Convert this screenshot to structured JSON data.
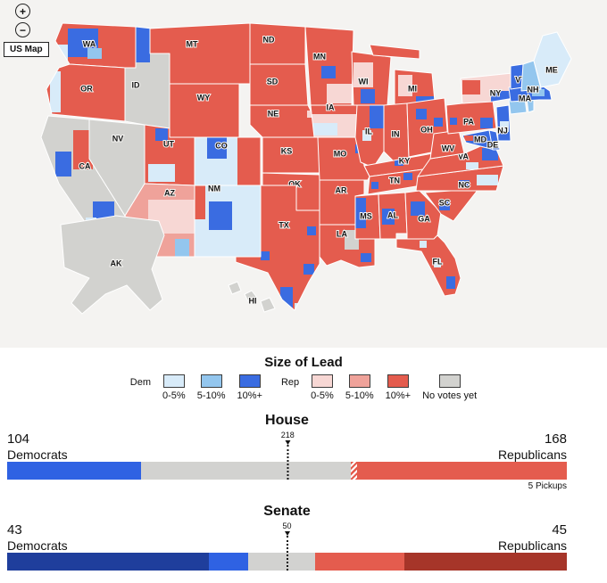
{
  "map_section": {
    "background": "#f4f3f1",
    "controls": {
      "zoom_in_label": "+",
      "zoom_out_label": "−",
      "view_button_label": "US Map"
    },
    "palette": {
      "dem1": "#d8ebf9",
      "dem2": "#93c6ee",
      "dem3": "#3a6ce1",
      "rep1": "#f7d7d4",
      "rep2": "#efa29a",
      "rep3": "#e45c4e",
      "neutral": "#d2d2cf"
    },
    "states": [
      {
        "code": "WA",
        "fill": "rep3"
      },
      {
        "code": "OR",
        "fill": "rep3"
      },
      {
        "code": "CA",
        "fill": "neutral"
      },
      {
        "code": "NV",
        "fill": "neutral"
      },
      {
        "code": "ID",
        "fill": "neutral"
      },
      {
        "code": "MT",
        "fill": "rep3"
      },
      {
        "code": "WY",
        "fill": "rep3"
      },
      {
        "code": "UT",
        "fill": "rep3"
      },
      {
        "code": "CO",
        "fill": "dem1"
      },
      {
        "code": "AZ",
        "fill": "rep2"
      },
      {
        "code": "NM",
        "fill": "dem1"
      },
      {
        "code": "ND",
        "fill": "rep3"
      },
      {
        "code": "SD",
        "fill": "rep3"
      },
      {
        "code": "NE",
        "fill": "rep3"
      },
      {
        "code": "KS",
        "fill": "rep3"
      },
      {
        "code": "OK",
        "fill": "rep3"
      },
      {
        "code": "TX",
        "fill": "rep3"
      },
      {
        "code": "MN",
        "fill": "rep3"
      },
      {
        "code": "IA",
        "fill": "rep1"
      },
      {
        "code": "MO",
        "fill": "rep3"
      },
      {
        "code": "AR",
        "fill": "rep3"
      },
      {
        "code": "LA",
        "fill": "rep3"
      },
      {
        "code": "WI",
        "fill": "rep3"
      },
      {
        "code": "MI",
        "fill": "rep3"
      },
      {
        "code": "IL",
        "fill": "rep3"
      },
      {
        "code": "IN",
        "fill": "rep3"
      },
      {
        "code": "OH",
        "fill": "rep3"
      },
      {
        "code": "KY",
        "fill": "rep3"
      },
      {
        "code": "TN",
        "fill": "rep3"
      },
      {
        "code": "MS",
        "fill": "rep3"
      },
      {
        "code": "AL",
        "fill": "rep3"
      },
      {
        "code": "GA",
        "fill": "rep3"
      },
      {
        "code": "FL",
        "fill": "rep3"
      },
      {
        "code": "SC",
        "fill": "rep3"
      },
      {
        "code": "NC",
        "fill": "rep3"
      },
      {
        "code": "VA",
        "fill": "rep3"
      },
      {
        "code": "WV",
        "fill": "rep3"
      },
      {
        "code": "PA",
        "fill": "rep3"
      },
      {
        "code": "NY",
        "fill": "rep1"
      },
      {
        "code": "NJ",
        "fill": "dem3"
      },
      {
        "code": "MD",
        "fill": "dem3"
      },
      {
        "code": "DE",
        "fill": "dem3"
      },
      {
        "code": "CT",
        "fill": "dem2",
        "show_label": false
      },
      {
        "code": "RI",
        "fill": "dem2",
        "show_label": false
      },
      {
        "code": "MA",
        "fill": "dem3"
      },
      {
        "code": "VT",
        "fill": "dem3"
      },
      {
        "code": "NH",
        "fill": "dem2"
      },
      {
        "code": "ME",
        "fill": "dem1"
      },
      {
        "code": "AK",
        "fill": "neutral"
      },
      {
        "code": "HI",
        "fill": "neutral"
      }
    ]
  },
  "legend": {
    "title": "Size of Lead",
    "dem_label": "Dem",
    "rep_label": "Rep",
    "dem_swatches": [
      {
        "label": "0-5%",
        "color": "#d8ebf9"
      },
      {
        "label": "5-10%",
        "color": "#93c6ee"
      },
      {
        "label": "10%+",
        "color": "#3a6ce1"
      }
    ],
    "rep_swatches": [
      {
        "label": "0-5%",
        "color": "#f7d7d4"
      },
      {
        "label": "5-10%",
        "color": "#efa29a"
      },
      {
        "label": "10%+",
        "color": "#e45c4e"
      }
    ],
    "no_votes_swatch": {
      "label": "No votes yet",
      "color": "#d2d2cf"
    }
  },
  "house": {
    "title": "House",
    "left": {
      "value": "104",
      "label": "Democrats"
    },
    "right": {
      "value": "168",
      "label": "Republicans"
    },
    "total_seats": 435,
    "majority_seats": 218,
    "pickups_note": "5 Pickups",
    "segments": [
      {
        "name": "dem-leads",
        "seats": 104,
        "color": "#2f62e3"
      },
      {
        "name": "uncalled",
        "seats": 163,
        "color": "#d2d2d0"
      },
      {
        "name": "rep-pickups",
        "seats": 5,
        "color": "#e45c4e",
        "hatched": true
      },
      {
        "name": "rep-leads",
        "seats": 163,
        "color": "#e45c4e"
      }
    ]
  },
  "senate": {
    "title": "Senate",
    "left": {
      "value": "43",
      "label": "Democrats"
    },
    "right": {
      "value": "45",
      "label": "Republicans"
    },
    "total_seats": 100,
    "majority_seats": 50,
    "pickups_note": "",
    "segments": [
      {
        "name": "dem-holdovers",
        "seats": 36,
        "color": "#1f3e9c"
      },
      {
        "name": "dem-wins",
        "seats": 7,
        "color": "#2f62e3"
      },
      {
        "name": "uncalled",
        "seats": 12,
        "color": "#d2d2d0"
      },
      {
        "name": "rep-wins",
        "seats": 16,
        "color": "#e45c4e"
      },
      {
        "name": "rep-holdovers",
        "seats": 29,
        "color": "#a63529"
      }
    ]
  }
}
